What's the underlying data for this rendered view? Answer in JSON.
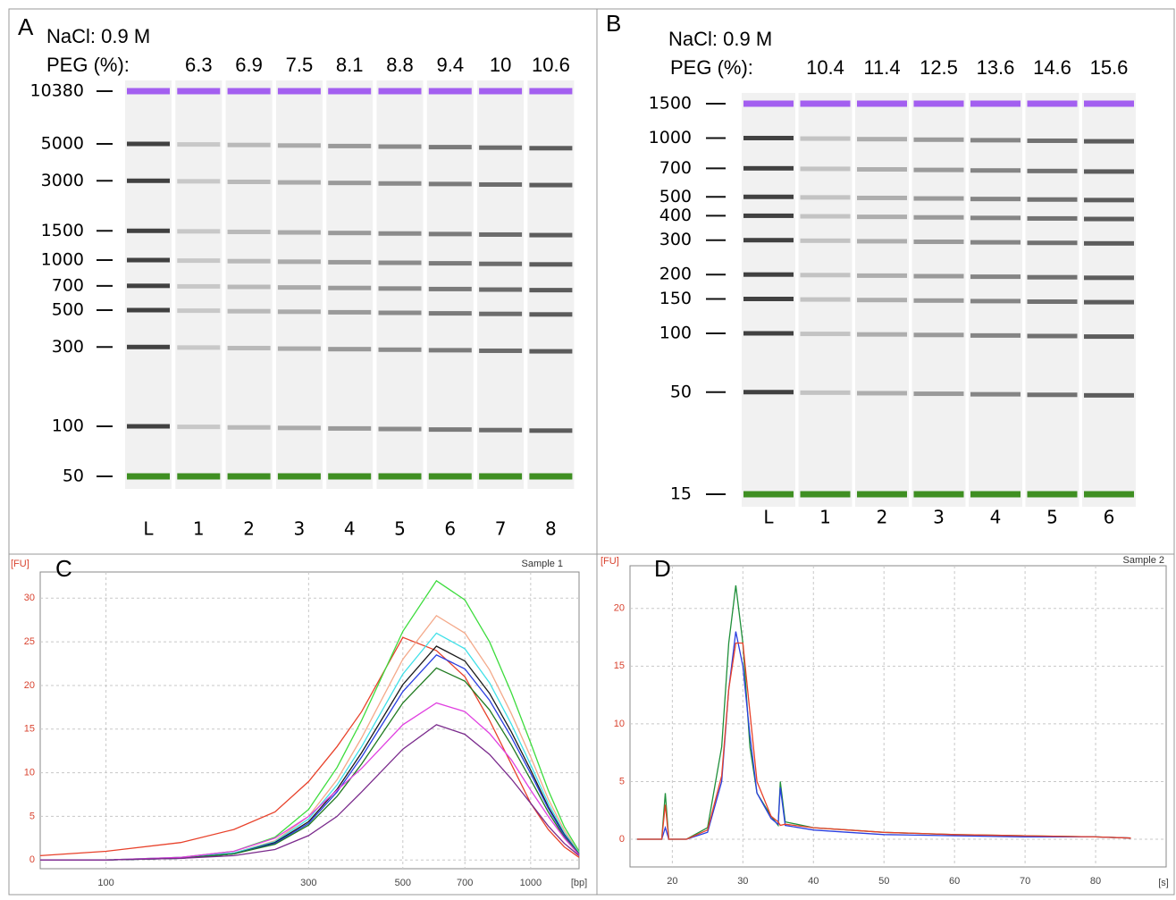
{
  "chart_data": [
    {
      "type": "gel",
      "panel": "A",
      "salt_label": "NaCl: 0.9 M",
      "peg_label": "PEG (%):",
      "peg_values": [
        6.3,
        6.9,
        7.5,
        8.1,
        8.8,
        9.4,
        10,
        10.6
      ],
      "categories": [
        "L",
        "1",
        "2",
        "3",
        "4",
        "5",
        "6",
        "7",
        "8"
      ],
      "ylim": [
        50,
        10380
      ],
      "yticks": [
        10380,
        5000,
        3000,
        1500,
        1000,
        700,
        500,
        300,
        100,
        50
      ],
      "log": true,
      "marker_colors": {
        "upper": "#a35ff0",
        "lower": "#3f8f22"
      }
    },
    {
      "type": "gel",
      "panel": "B",
      "salt_label": "NaCl: 0.9 M",
      "peg_label": "PEG (%):",
      "peg_values": [
        10.4,
        11.4,
        12.5,
        13.6,
        14.6,
        15.6
      ],
      "categories": [
        "L",
        "1",
        "2",
        "3",
        "4",
        "5",
        "6"
      ],
      "ylim": [
        15,
        1500
      ],
      "yticks": [
        1500,
        1000,
        700,
        500,
        400,
        300,
        200,
        150,
        100,
        50,
        15
      ],
      "log": true,
      "marker_colors": {
        "upper": "#a35ff0",
        "lower": "#3f8f22"
      }
    },
    {
      "type": "line",
      "panel": "C",
      "y_unit": "[FU]",
      "x_unit": "[bp]",
      "sample": "Sample 1",
      "x": [
        70,
        100,
        150,
        200,
        250,
        300,
        350,
        400,
        500,
        600,
        700,
        800,
        900,
        1000,
        1100,
        1200,
        1300
      ],
      "log_x": true,
      "xlim": [
        70,
        1300
      ],
      "xticks": [
        100,
        300,
        500,
        700,
        1000
      ],
      "ylim": [
        -1,
        33
      ],
      "yticks": [
        0,
        5,
        10,
        15,
        20,
        25,
        30
      ],
      "grid": true,
      "tick_color": "#d9432f",
      "series": [
        {
          "color": "#e8412a",
          "values": [
            0.5,
            1,
            2,
            3.5,
            5.5,
            9,
            13,
            17,
            25.5,
            24,
            21,
            16,
            11,
            6.5,
            3.5,
            1.5,
            0.3
          ]
        },
        {
          "color": "#3ddc3d",
          "values": [
            0,
            0,
            0.3,
            1,
            2.6,
            5.8,
            10.6,
            16,
            26.2,
            32,
            29.8,
            25,
            19.2,
            13.4,
            8,
            3.8,
            1
          ]
        },
        {
          "color": "#f4a98a",
          "values": [
            0,
            0,
            0.3,
            0.8,
            2.2,
            5,
            9.2,
            14,
            23,
            28,
            26,
            21.8,
            16.8,
            11.8,
            7,
            3.4,
            0.8
          ]
        },
        {
          "color": "#3fe0e8",
          "values": [
            0,
            0,
            0.3,
            0.8,
            2.1,
            4.7,
            8.6,
            13,
            21.3,
            26,
            24.2,
            20.3,
            15.6,
            10.9,
            6.5,
            3.1,
            0.8
          ]
        },
        {
          "color": "#1a1a1a",
          "values": [
            0,
            0,
            0.2,
            0.7,
            2,
            4.4,
            8.1,
            12.3,
            20.1,
            24.5,
            22.8,
            19.1,
            14.7,
            10.3,
            6.1,
            2.9,
            0.7
          ]
        },
        {
          "color": "#2a3ee0",
          "values": [
            0,
            0,
            0.2,
            0.7,
            1.9,
            4.2,
            7.8,
            11.8,
            19.3,
            23.5,
            21.9,
            18.3,
            14.1,
            9.9,
            5.9,
            2.8,
            0.7
          ]
        },
        {
          "color": "#1f7a1f",
          "values": [
            0,
            0,
            0.2,
            0.7,
            1.8,
            4,
            7.3,
            11,
            18,
            22,
            20.5,
            17.2,
            13.2,
            9.2,
            5.5,
            2.6,
            0.7
          ]
        },
        {
          "color": "#e040e0",
          "values": [
            0,
            0,
            0.3,
            1,
            2.5,
            5,
            8,
            10.5,
            15.5,
            18,
            17,
            14.5,
            11.5,
            8,
            5,
            2.5,
            0.6
          ]
        },
        {
          "color": "#7a2a8c",
          "values": [
            0,
            0,
            0.2,
            0.5,
            1.2,
            2.8,
            5,
            7.8,
            12.7,
            15.5,
            14.4,
            12.1,
            9.3,
            6.5,
            3.9,
            1.9,
            0.5
          ]
        }
      ]
    },
    {
      "type": "line",
      "panel": "D",
      "y_unit": "[FU]",
      "x_unit": "[s]",
      "sample": "Sample 2",
      "x": [
        15,
        18.5,
        19,
        19.5,
        22,
        25,
        27,
        28,
        29,
        30,
        31,
        32,
        34,
        35,
        35.3,
        36,
        40,
        45,
        50,
        60,
        70,
        80,
        85
      ],
      "log_x": false,
      "xlim": [
        14,
        90
      ],
      "xticks": [
        20,
        30,
        40,
        50,
        60,
        70,
        80
      ],
      "ylim": [
        -2.4,
        23.7
      ],
      "yticks": [
        0,
        5,
        10,
        15,
        20
      ],
      "grid": true,
      "tick_color": "#d9432f",
      "series": [
        {
          "color": "#1f8f3a",
          "values": [
            0,
            0,
            4,
            0,
            0,
            1,
            8,
            17,
            22,
            17,
            8,
            4,
            2,
            1.2,
            5,
            1.5,
            1,
            0.8,
            0.6,
            0.4,
            0.3,
            0.2,
            0.1
          ]
        },
        {
          "color": "#2a3ee0",
          "values": [
            0,
            0,
            1,
            0,
            0,
            0.6,
            5,
            13,
            18,
            15,
            9,
            4,
            1.8,
            1.3,
            4.5,
            1.2,
            0.8,
            0.6,
            0.4,
            0.3,
            0.2,
            0.2,
            0.1
          ]
        },
        {
          "color": "#e8412a",
          "values": [
            0,
            0,
            3,
            0,
            0,
            0.8,
            5.5,
            13,
            17,
            17,
            11,
            5,
            2,
            1.5,
            1.2,
            1.3,
            1,
            0.8,
            0.6,
            0.4,
            0.3,
            0.2,
            0.1
          ]
        }
      ]
    }
  ]
}
